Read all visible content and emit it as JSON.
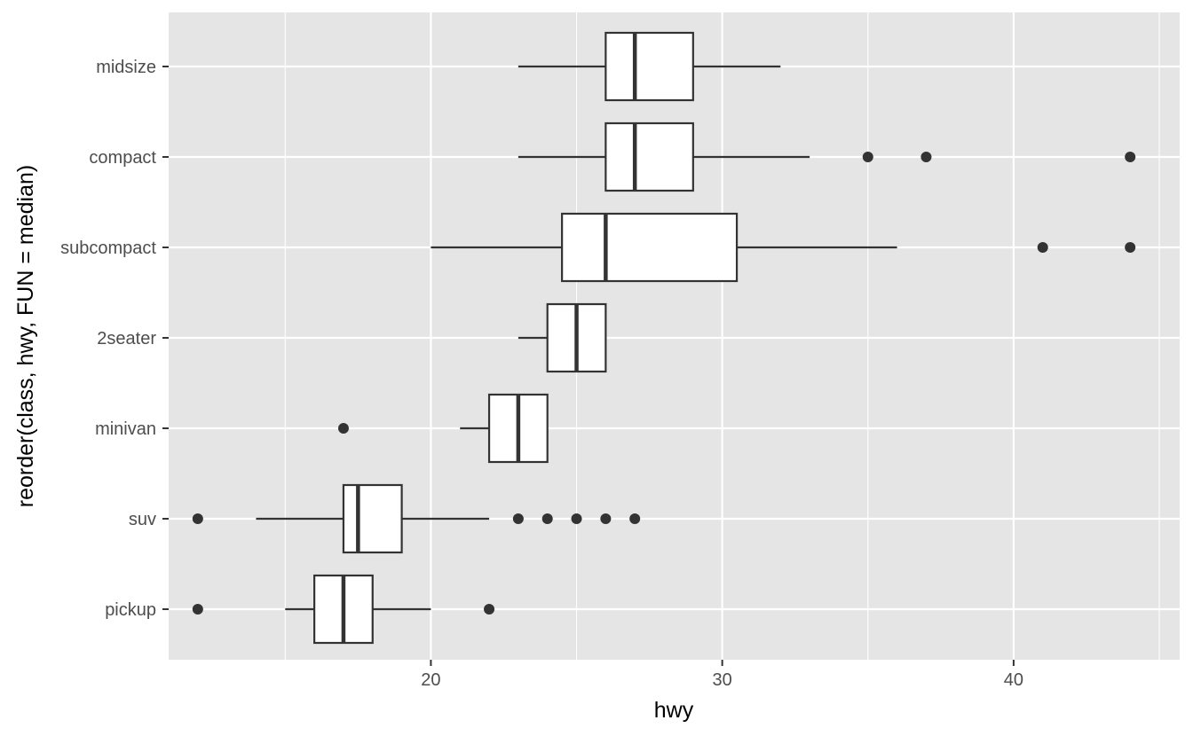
{
  "chart_data": {
    "type": "boxplot",
    "orientation": "horizontal",
    "xlabel": "hwy",
    "ylabel": "reorder(class, hwy, FUN = median)",
    "xlim": [
      11,
      45.7
    ],
    "x_ticks": [
      20,
      30,
      40
    ],
    "grid": true,
    "legend": "none",
    "categories": [
      "midsize",
      "compact",
      "subcompact",
      "2seater",
      "minivan",
      "suv",
      "pickup"
    ],
    "boxes": [
      {
        "category": "midsize",
        "whisker_low": 23,
        "q1": 26,
        "median": 27,
        "q3": 29,
        "whisker_high": 32,
        "outliers": []
      },
      {
        "category": "compact",
        "whisker_low": 23,
        "q1": 26,
        "median": 27,
        "q3": 29,
        "whisker_high": 33,
        "outliers": [
          35,
          37,
          44
        ]
      },
      {
        "category": "subcompact",
        "whisker_low": 20,
        "q1": 24.5,
        "median": 26,
        "q3": 30.5,
        "whisker_high": 36,
        "outliers": [
          41,
          44
        ]
      },
      {
        "category": "2seater",
        "whisker_low": 23,
        "q1": 24,
        "median": 25,
        "q3": 26,
        "whisker_high": 26,
        "outliers": []
      },
      {
        "category": "minivan",
        "whisker_low": 21,
        "q1": 22,
        "median": 23,
        "q3": 24,
        "whisker_high": 24,
        "outliers": [
          17
        ]
      },
      {
        "category": "suv",
        "whisker_low": 14,
        "q1": 17,
        "median": 17.5,
        "q3": 19,
        "whisker_high": 22,
        "outliers": [
          12,
          23,
          24,
          25,
          26,
          27
        ]
      },
      {
        "category": "pickup",
        "whisker_low": 15,
        "q1": 16,
        "median": 17,
        "q3": 18,
        "whisker_high": 20,
        "outliers": [
          12,
          22
        ]
      }
    ],
    "colors": {
      "panel_background": "#e5e5e5",
      "grid": "#ffffff",
      "box_fill": "#ffffff",
      "line": "#333333",
      "tick_text": "#4d4d4d",
      "title_text": "#000000"
    }
  }
}
